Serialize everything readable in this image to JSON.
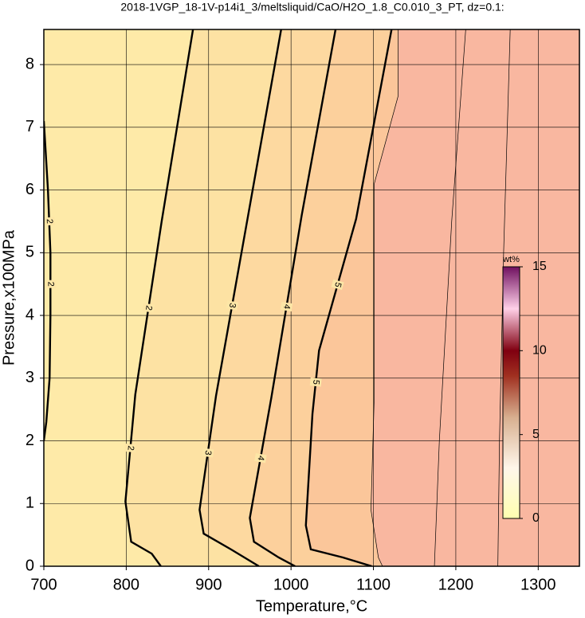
{
  "chart_data": {
    "type": "contour",
    "title": "2018-1VGP_18-1V-p14i1_3/meltsliquid/CaO/H2O_1.8_C0.010_3_PT, dz=0.1:",
    "xlabel": "Temperature,°C",
    "ylabel": "Pressure,x100MPa",
    "xlim": [
      700,
      1350
    ],
    "ylim": [
      0,
      8.56
    ],
    "xticks": [
      700,
      800,
      900,
      1000,
      1100,
      1200,
      1300
    ],
    "yticks": [
      0,
      1,
      2,
      3,
      4,
      5,
      6,
      7,
      8
    ],
    "grid": true,
    "base_fill": "#feeaa8",
    "contours": [
      {
        "level": 2,
        "bold": true,
        "labeled": true,
        "x": [
          700,
          705,
          708,
          708,
          707,
          703,
          700
        ],
        "y": [
          7.1,
          6.0,
          5.0,
          4.0,
          3.0,
          2.3,
          2.0
        ]
      },
      {
        "level": 2,
        "bold": true,
        "labeled": true,
        "fill": "#fde2a3",
        "x": [
          881,
          843,
          811,
          799,
          806,
          831,
          842
        ],
        "y": [
          8.56,
          5.5,
          2.74,
          1.03,
          0.39,
          0.2,
          0
        ]
      },
      {
        "level": 3,
        "bold": true,
        "labeled": true,
        "fill": "#fdd9a0",
        "x": [
          988,
          948,
          909,
          889,
          894,
          927,
          961
        ],
        "y": [
          8.56,
          5.6,
          2.72,
          0.9,
          0.52,
          0.27,
          0
        ]
      },
      {
        "level": 4,
        "bold": true,
        "labeled": true,
        "fill": "#fcd09c",
        "x": [
          1054,
          1013,
          976,
          950,
          955,
          985,
          1005
        ],
        "y": [
          8.56,
          5.6,
          2.68,
          0.77,
          0.39,
          0.14,
          0
        ]
      },
      {
        "level": 5,
        "bold": true,
        "labeled": true,
        "fill": "#fbc69a",
        "x": [
          1122,
          1079,
          1034,
          1026,
          1018,
          1024,
          1063,
          1098
        ],
        "y": [
          8.56,
          5.54,
          3.44,
          2.43,
          0.65,
          0.27,
          0.14,
          0
        ]
      },
      {
        "level": 5.5,
        "bold": false,
        "labeled": false,
        "fill": "#f9b7a0",
        "x": [
          1130,
          1130,
          1101,
          1101,
          1097,
          1106,
          1111
        ],
        "y": [
          8.56,
          7.5,
          6.1,
          2.7,
          0.9,
          0.14,
          0
        ]
      },
      {
        "level": 5.6,
        "bold": false,
        "labeled": false,
        "x": [
          1212,
          1195,
          1180,
          1174
        ],
        "y": [
          8.56,
          5.5,
          2.0,
          0
        ]
      },
      {
        "level": 5.7,
        "bold": false,
        "labeled": false,
        "x": [
          1266,
          1258,
          1253,
          1251
        ],
        "y": [
          8.56,
          5.0,
          2.0,
          0
        ]
      }
    ],
    "colorbar": {
      "label": "wt%",
      "lim": [
        0,
        15
      ],
      "ticks": [
        0,
        5,
        10,
        15
      ],
      "stops": [
        {
          "value": 0,
          "color": "#ffffb0"
        },
        {
          "value": 3,
          "color": "#fff6ea"
        },
        {
          "value": 6,
          "color": "#d8b090"
        },
        {
          "value": 8.5,
          "color": "#a03020"
        },
        {
          "value": 10,
          "color": "#800010"
        },
        {
          "value": 12.5,
          "color": "#ffd0e8"
        },
        {
          "value": 15,
          "color": "#701060"
        }
      ]
    }
  }
}
